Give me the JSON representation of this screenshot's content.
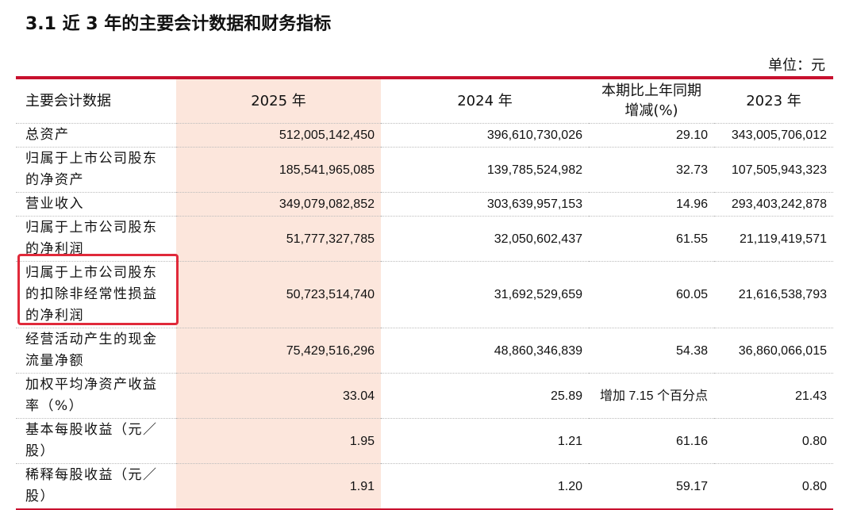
{
  "header": {
    "title": "3.1  近 3 年的主要会计数据和财务指标",
    "unit": "单位：元"
  },
  "table": {
    "columns": [
      "主要会计数据",
      "2025 年",
      "2024 年",
      "本期比上年同期增减(%)",
      "2023 年"
    ],
    "rows": [
      [
        "总资产",
        "512,005,142,450",
        "396,610,730,026",
        "29.10",
        "343,005,706,012"
      ],
      [
        "归属于上市公司股东的净资产",
        "185,541,965,085",
        "139,785,524,982",
        "32.73",
        "107,505,943,323"
      ],
      [
        "营业收入",
        "349,079,082,852",
        "303,639,957,153",
        "14.96",
        "293,403,242,878"
      ],
      [
        "归属于上市公司股东的净利润",
        "51,777,327,785",
        "32,050,602,437",
        "61.55",
        "21,119,419,571"
      ],
      [
        "归属于上市公司股东的扣除非经常性损益的净利润",
        "50,723,514,740",
        "31,692,529,659",
        "60.05",
        "21,616,538,793"
      ],
      [
        "经营活动产生的现金流量净额",
        "75,429,516,296",
        "48,860,346,839",
        "54.38",
        "36,860,066,015"
      ],
      [
        "加权平均净资产收益率（%）",
        "33.04",
        "25.89",
        "增加 7.15 个百分点",
        "21.43"
      ],
      [
        "基本每股收益（元／股）",
        "1.95",
        "1.21",
        "61.16",
        "0.80"
      ],
      [
        "稀释每股收益（元／股）",
        "1.91",
        "1.20",
        "59.17",
        "0.80"
      ]
    ]
  }
}
